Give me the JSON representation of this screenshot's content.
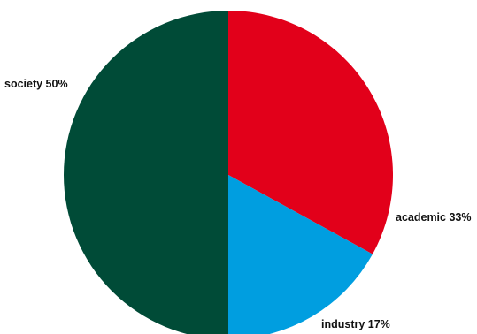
{
  "chart_data": {
    "type": "pie",
    "title": "",
    "start_angle_deg": 0,
    "direction": "clockwise",
    "slices": [
      {
        "name": "academic",
        "label": "academic 33%",
        "value": 33,
        "color": "#e2001a"
      },
      {
        "name": "industry",
        "label": "industry 17%",
        "value": 17,
        "color": "#009ee0"
      },
      {
        "name": "society",
        "label": "society 50%",
        "value": 50,
        "color": "#004b37"
      }
    ]
  }
}
